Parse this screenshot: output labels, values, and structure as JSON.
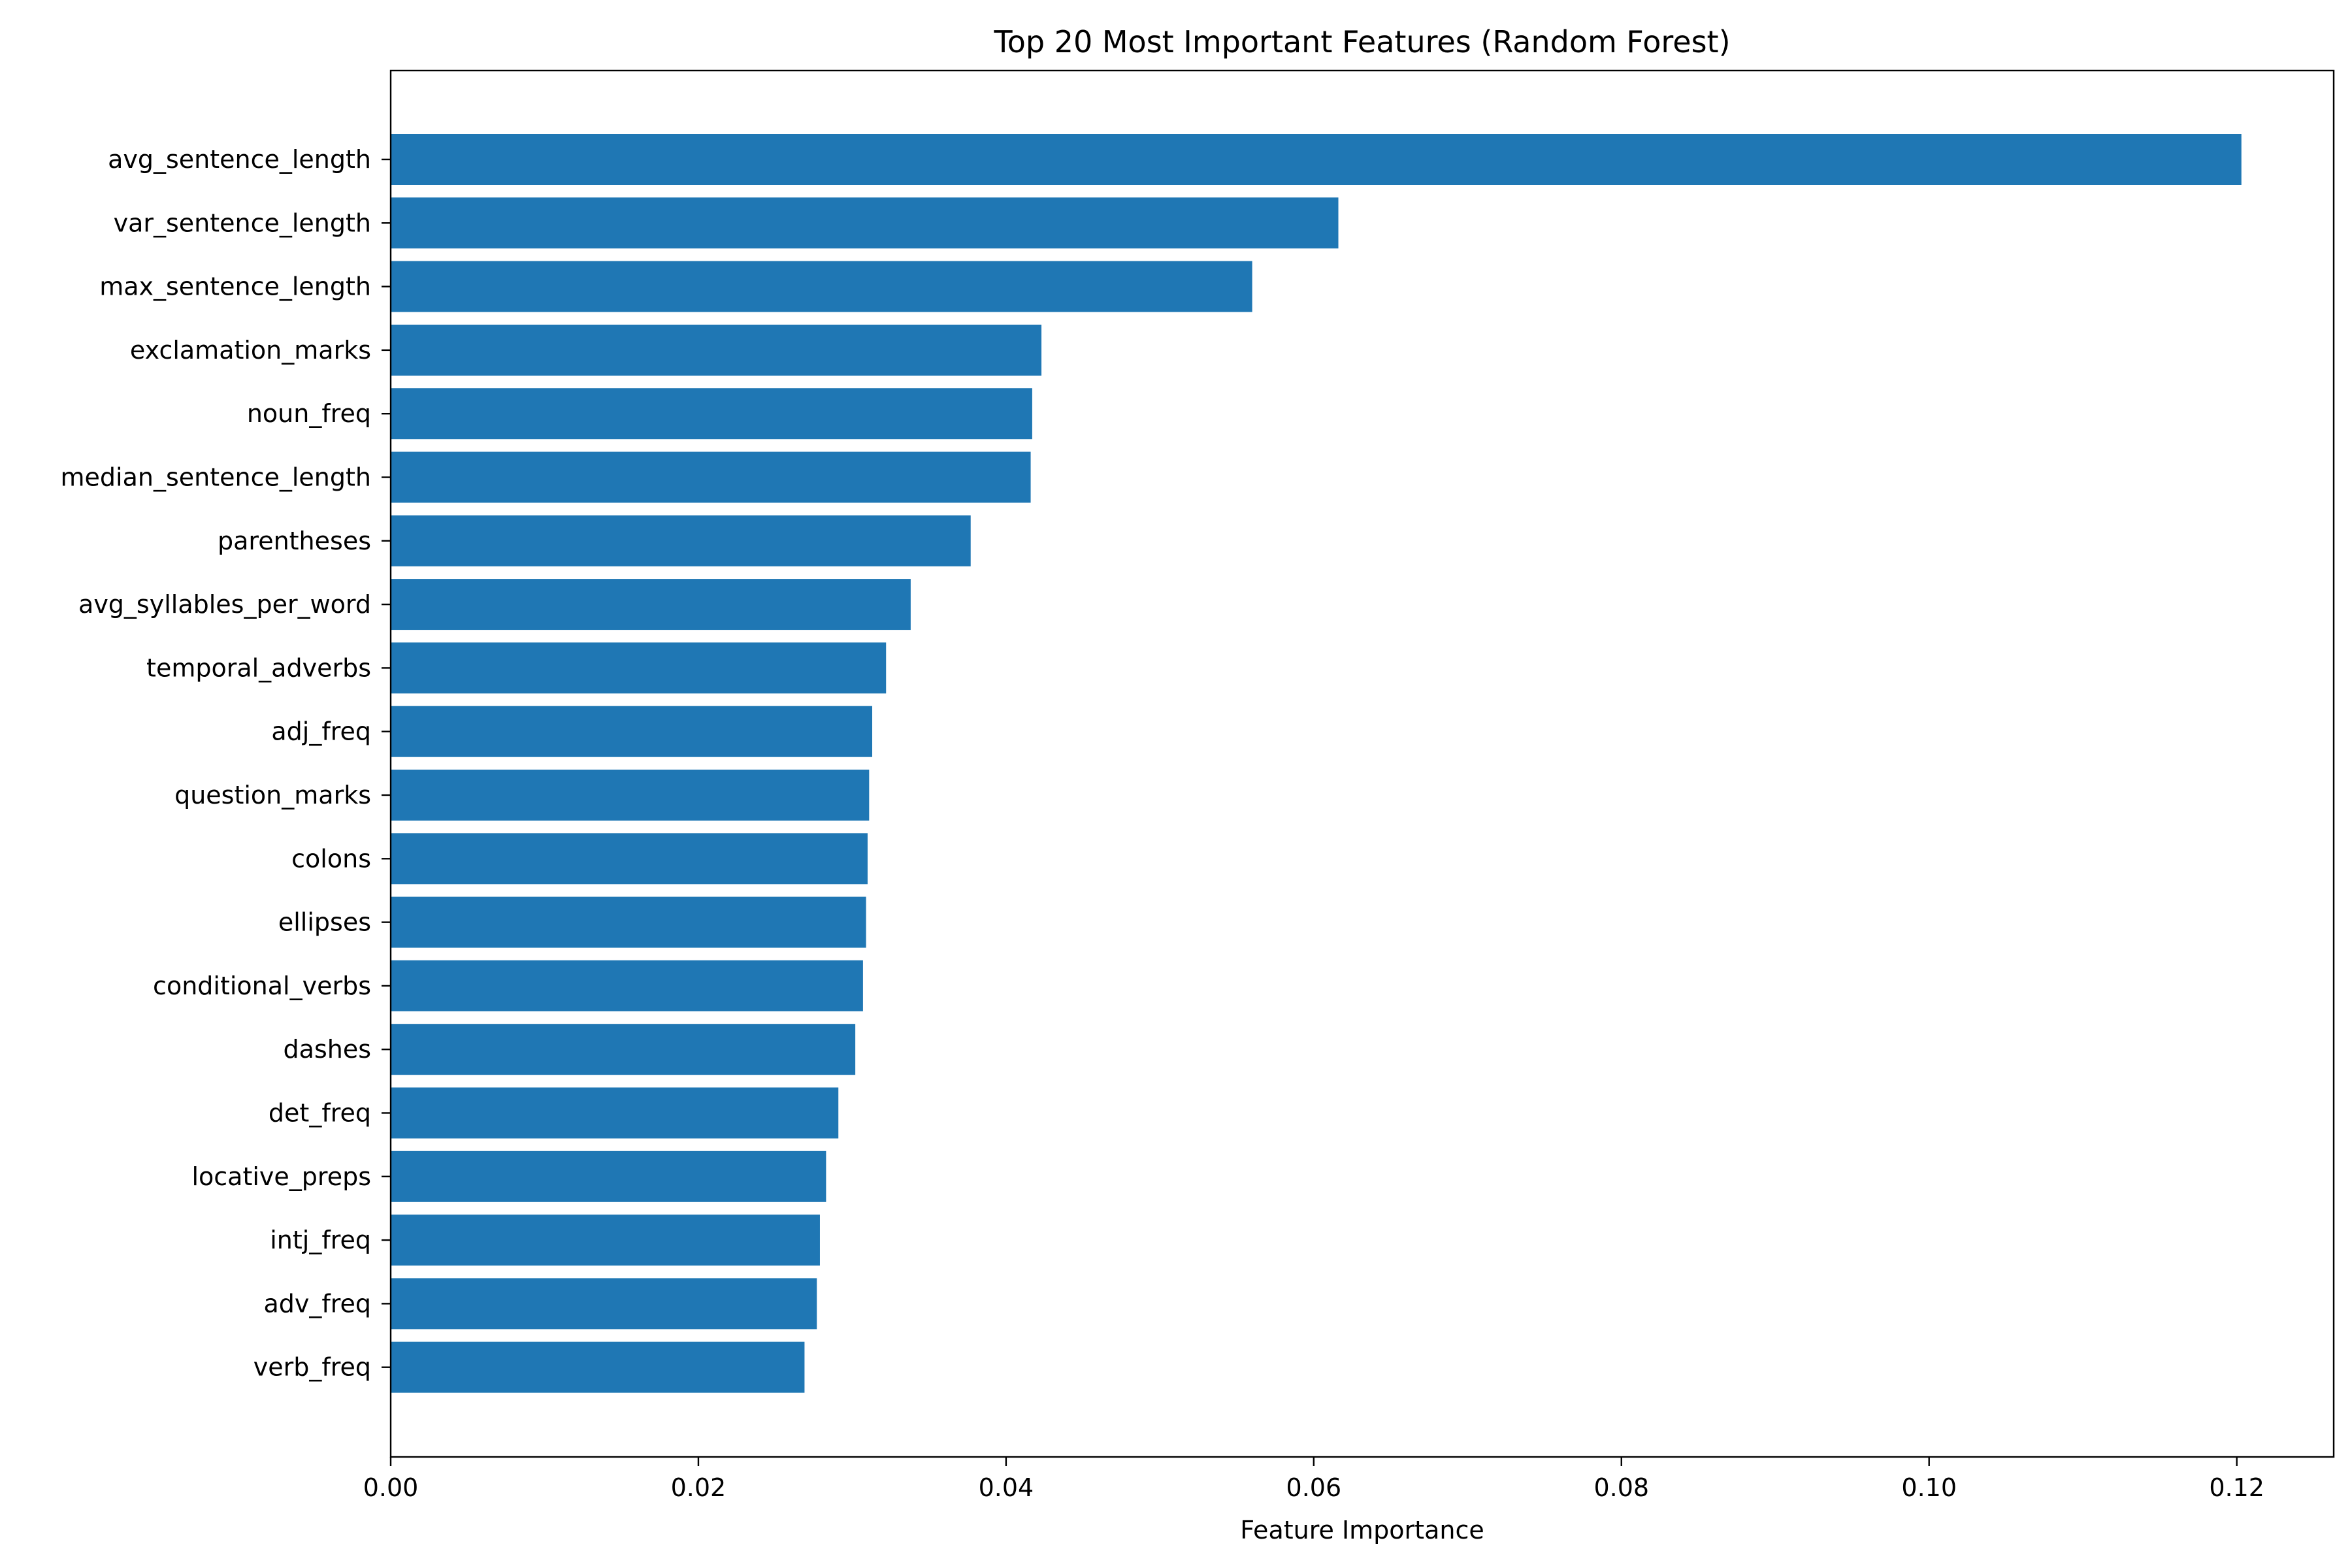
{
  "chart_data": {
    "type": "bar",
    "orientation": "horizontal",
    "title": "Top 20 Most Important Features (Random Forest)",
    "xlabel": "Feature Importance",
    "ylabel": "",
    "xlim": [
      0,
      0.1263
    ],
    "x_ticks": [
      "0.00",
      "0.02",
      "0.04",
      "0.06",
      "0.08",
      "0.10",
      "0.12"
    ],
    "grid": false,
    "bar_color": "#1f77b4",
    "categories": [
      "avg_sentence_length",
      "var_sentence_length",
      "max_sentence_length",
      "exclamation_marks",
      "noun_freq",
      "median_sentence_length",
      "parentheses",
      "avg_syllables_per_word",
      "temporal_adverbs",
      "adj_freq",
      "question_marks",
      "colons",
      "ellipses",
      "conditional_verbs",
      "dashes",
      "det_freq",
      "locative_preps",
      "intj_freq",
      "adv_freq",
      "verb_freq"
    ],
    "values": [
      0.1203,
      0.0616,
      0.056,
      0.0423,
      0.0417,
      0.0416,
      0.0377,
      0.0338,
      0.0322,
      0.0313,
      0.0311,
      0.031,
      0.0309,
      0.0307,
      0.0302,
      0.0291,
      0.0283,
      0.0279,
      0.0277,
      0.0269
    ]
  }
}
